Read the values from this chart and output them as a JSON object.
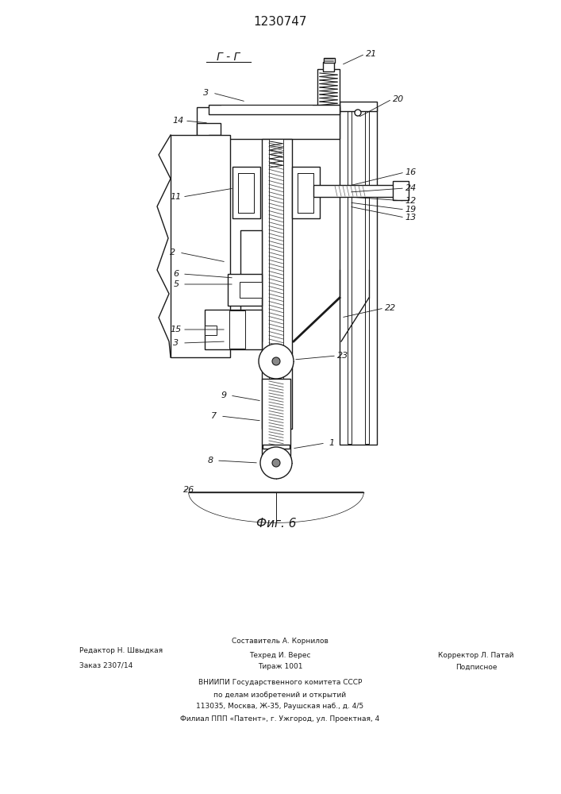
{
  "title": "1230747",
  "section_label": "Г - Г",
  "fig_label": "Фиг. 6",
  "bg_color": "#ffffff",
  "line_color": "#1a1a1a",
  "footer": {
    "editor": "Редактор Н. Швыдкая",
    "order": "Заказ 2307/14",
    "composer": "Составитель А. Корнилов",
    "techred": "Техред И. Верес",
    "print_run": "Тираж 1001",
    "corrector": "Корректор Л. Патай",
    "podpisnoe": "Подписное",
    "vniiipi1": "ВНИИПИ Государственного комитета СССР",
    "vniiipi2": "по делам изобретений и открытий",
    "vniiipi3": "113035, Москва, Ж-35, Раушская наб., д. 4/5",
    "vniiipi4": "Филиал ППП «Патент», г. Ужгород, ул. Проектная, 4"
  }
}
